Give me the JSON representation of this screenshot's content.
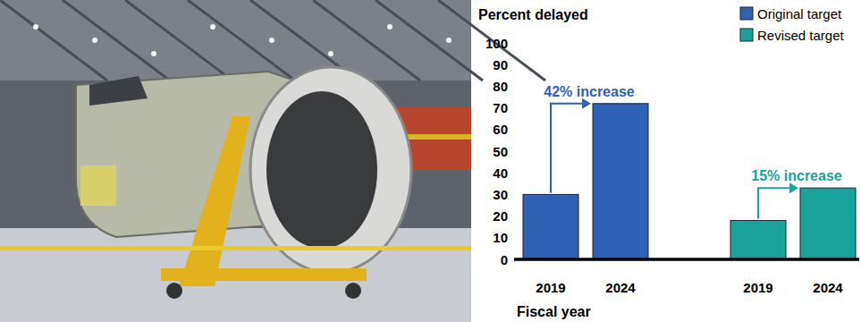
{
  "chart_data": {
    "type": "bar",
    "y_label": "Percent delayed",
    "x_label": "Fiscal year",
    "categories": [
      "2019",
      "2024",
      "2019",
      "2024"
    ],
    "series": [
      {
        "name": "Original target",
        "color": "#2f62b5",
        "values": [
          30,
          72,
          null,
          null
        ]
      },
      {
        "name": "Revised target",
        "color": "#1aa39a",
        "values": [
          null,
          null,
          18,
          33
        ]
      }
    ],
    "annotations": [
      {
        "text": "42% increase",
        "color": "#2f62b5"
      },
      {
        "text": "15% increase",
        "color": "#1aa39a"
      }
    ],
    "ylim": [
      0,
      100
    ],
    "yticks": [
      0,
      10,
      20,
      30,
      40,
      50,
      60,
      70,
      80,
      90,
      100
    ],
    "grid": false,
    "legend": "upper right"
  }
}
